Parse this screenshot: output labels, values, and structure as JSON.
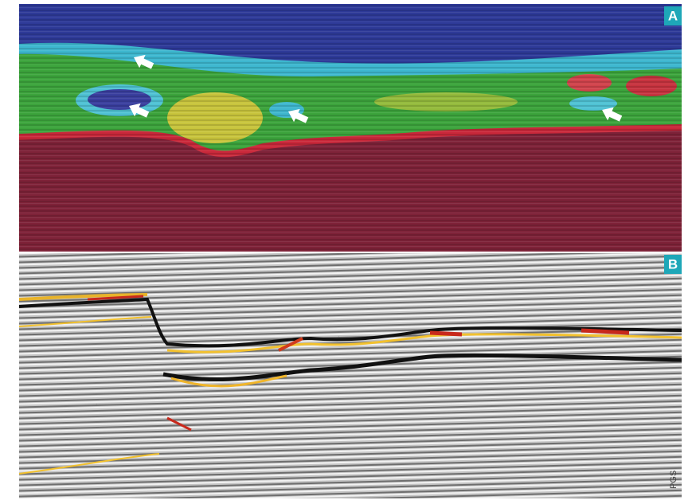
{
  "panels": [
    {
      "label": "A"
    },
    {
      "label": "B"
    }
  ],
  "credit": "PGS"
}
